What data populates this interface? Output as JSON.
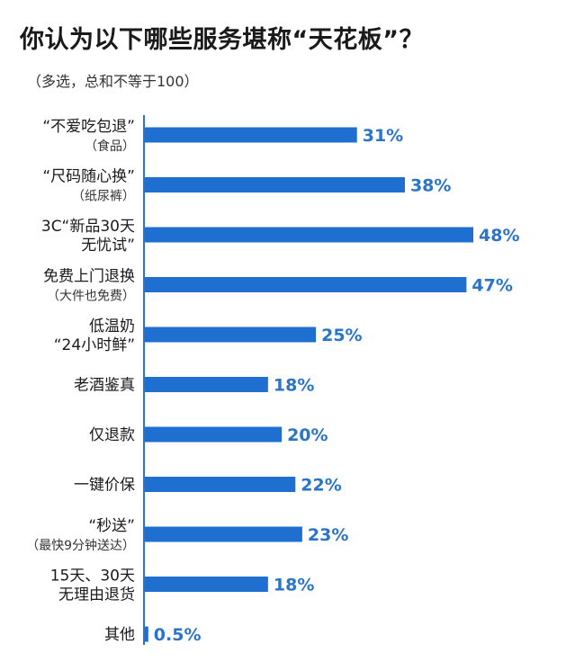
{
  "title": "你认为以下哪些服务堪称“天花板”？",
  "subtitle": "（多选，总和不等于100）",
  "colors": {
    "bar": "#1f6fd1",
    "value": "#2a74c9",
    "axis": "#2a74c9"
  },
  "chart_data": {
    "type": "bar",
    "orientation": "horizontal",
    "title": "你认为以下哪些服务堪称“天花板”？",
    "subtitle": "（多选，总和不等于100）",
    "categories": [
      {
        "lines": [
          "“不爱吃包退”",
          "（食品）"
        ]
      },
      {
        "lines": [
          "“尺码随心换”",
          "（纸尿裤）"
        ]
      },
      {
        "lines": [
          "3C“新品30天",
          "无忧试”"
        ]
      },
      {
        "lines": [
          "免费上门退换",
          "（大件也免费）"
        ]
      },
      {
        "lines": [
          "低温奶",
          "“24小时鲜”"
        ]
      },
      {
        "lines": [
          "老酒鉴真"
        ]
      },
      {
        "lines": [
          "仅退款"
        ]
      },
      {
        "lines": [
          "一键价保"
        ]
      },
      {
        "lines": [
          "“秒送”",
          "（最快9分钟送达）"
        ]
      },
      {
        "lines": [
          "15天、30天",
          "无理由退货"
        ]
      },
      {
        "lines": [
          "其他"
        ]
      }
    ],
    "values": [
      31,
      38,
      48,
      47,
      25,
      18,
      20,
      22,
      23,
      18,
      0.5
    ],
    "value_labels": [
      "31%",
      "38%",
      "48%",
      "47%",
      "25%",
      "18%",
      "20%",
      "22%",
      "23%",
      "18%",
      "0.5%"
    ],
    "xlim": [
      0,
      48
    ],
    "grid": false,
    "legend": "none"
  }
}
